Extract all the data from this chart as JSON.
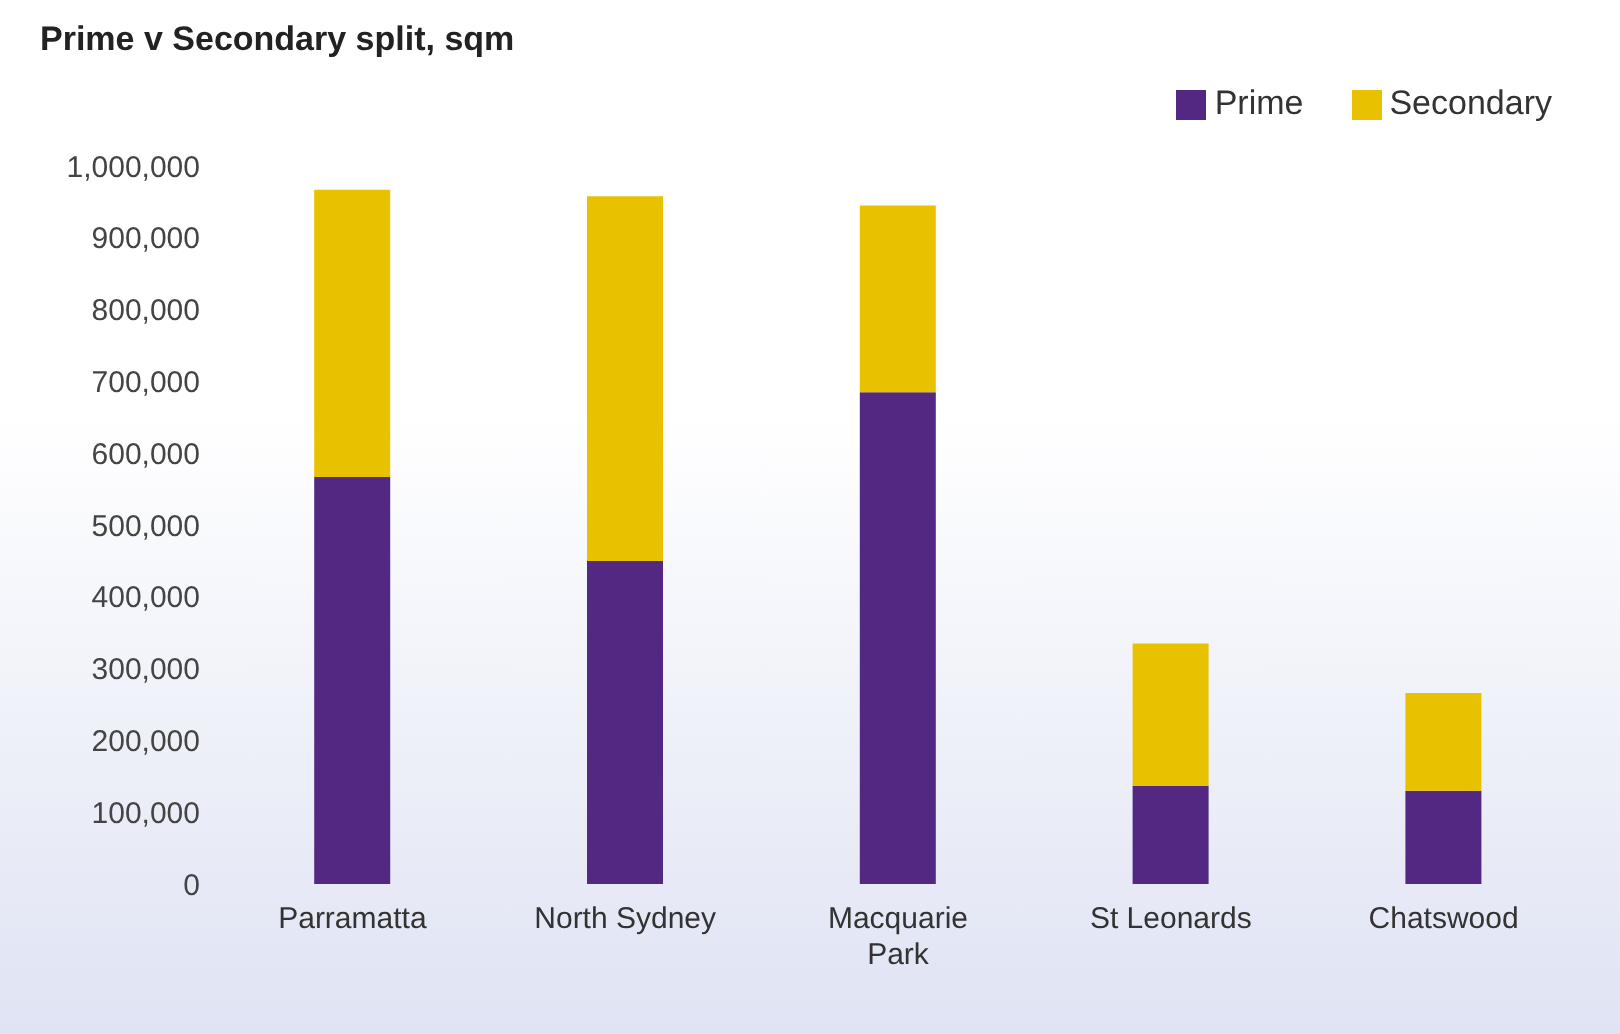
{
  "chart_data": {
    "type": "bar",
    "title": "Prime v Secondary split, sqm",
    "categories": [
      "Parramatta",
      "North Sydney",
      "Macquarie Park",
      "St Leonards",
      "Chatswood"
    ],
    "series": [
      {
        "name": "Prime",
        "color": "#532882",
        "values": [
          567000,
          450000,
          685000,
          137000,
          130000
        ]
      },
      {
        "name": "Secondary",
        "color": "#e8c200",
        "values": [
          400000,
          508000,
          260000,
          198000,
          136000
        ]
      }
    ],
    "stacked": true,
    "ylim": [
      0,
      1000000
    ],
    "yticks": [
      0,
      {
        "value": 100000,
        "label": "100,000"
      },
      {
        "value": 200000,
        "label": "200,000"
      },
      {
        "value": 300000,
        "label": "300,000"
      },
      {
        "value": 400000,
        "label": "400,000"
      },
      {
        "value": 500000,
        "label": "500,000"
      },
      {
        "value": 600000,
        "label": "600,000"
      },
      {
        "value": 700000,
        "label": "700,000"
      },
      {
        "value": 800000,
        "label": "800,000"
      },
      {
        "value": 900000,
        "label": "900,000"
      },
      {
        "value": 1000000,
        "label": "1,000,000"
      }
    ],
    "legend": "top right"
  }
}
